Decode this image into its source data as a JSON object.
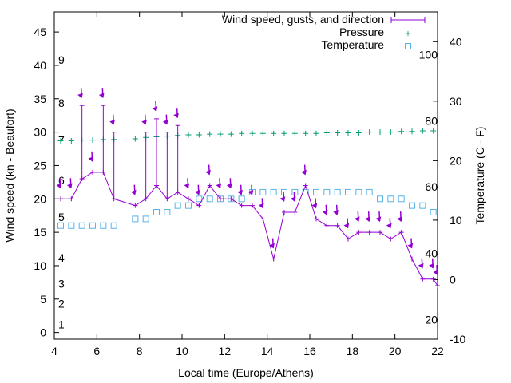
{
  "chart_data": {
    "type": "line",
    "xlabel": "Local time (Europe/Athens)",
    "ylabel": "Wind speed (kn - Beaufort)",
    "y2label": "Temperature (C - F)",
    "xlim": [
      4,
      22
    ],
    "ylim": [
      -1,
      48
    ],
    "y2lim": [
      -10,
      45
    ],
    "x_ticks": [
      4,
      6,
      8,
      10,
      12,
      14,
      16,
      18,
      20,
      22
    ],
    "y_ticks": [
      0,
      5,
      10,
      15,
      20,
      25,
      30,
      35,
      40,
      45
    ],
    "y2_ticks": [
      -10,
      0,
      10,
      20,
      30,
      40
    ],
    "beaufort_labels": [
      {
        "label": "1",
        "wind": 1.2
      },
      {
        "label": "2",
        "wind": 4.3
      },
      {
        "label": "3",
        "wind": 7.3
      },
      {
        "label": "4",
        "wind": 11.2
      },
      {
        "label": "5",
        "wind": 17.3
      },
      {
        "label": "6",
        "wind": 22.8
      },
      {
        "label": "7",
        "wind": 28.8
      },
      {
        "label": "8",
        "wind": 34.4
      },
      {
        "label": "9",
        "wind": 40.8
      }
    ],
    "fahrenheit_labels": [
      {
        "label": "20",
        "temp": -6.7
      },
      {
        "label": "40",
        "temp": 4.4
      },
      {
        "label": "60",
        "temp": 15.6
      },
      {
        "label": "80",
        "temp": 26.7
      },
      {
        "label": "100",
        "temp": 37.8
      }
    ],
    "legend_position": "top-right",
    "grid": false,
    "colors": {
      "wind": "#9400d3",
      "pressure": "#009e73",
      "temperature": "#56b4e9"
    },
    "series": [
      {
        "name": "Wind speed, gusts, and direction",
        "x": [
          4.3,
          4.8,
          5.3,
          5.8,
          6.3,
          6.8,
          7.8,
          8.3,
          8.8,
          9.3,
          9.8,
          10.3,
          10.8,
          11.3,
          11.8,
          12.3,
          12.8,
          13.3,
          13.8,
          14.3,
          14.8,
          15.3,
          15.8,
          16.3,
          16.8,
          17.3,
          17.8,
          18.3,
          18.8,
          19.3,
          19.8,
          20.3,
          20.8,
          21.3,
          21.8,
          22.0
        ],
        "values": [
          20,
          20,
          23,
          24,
          24,
          20,
          19,
          20,
          22,
          20,
          21,
          20,
          19,
          22,
          20,
          20,
          19,
          19,
          17,
          11,
          18,
          18,
          22,
          17,
          16,
          16,
          14,
          15,
          15,
          15,
          14,
          15,
          11,
          8,
          8,
          7
        ],
        "gusts": [
          null,
          null,
          34,
          null,
          34,
          30,
          null,
          30,
          32,
          30,
          31,
          null,
          null,
          null,
          null,
          null,
          null,
          null,
          null,
          null,
          null,
          null,
          null,
          null,
          null,
          null,
          null,
          null,
          null,
          null,
          null,
          null,
          null,
          null,
          null,
          null
        ],
        "direction_deg": [
          200,
          200,
          200,
          200,
          200,
          200,
          200,
          200,
          200,
          200,
          200,
          200,
          200,
          200,
          200,
          200,
          200,
          200,
          200,
          200,
          200,
          200,
          200,
          200,
          200,
          200,
          200,
          200,
          200,
          200,
          200,
          200,
          200,
          200,
          200,
          200
        ]
      },
      {
        "name": "Pressure",
        "x": [
          4.3,
          4.8,
          5.3,
          5.8,
          6.3,
          6.8,
          7.8,
          8.3,
          8.8,
          9.3,
          9.8,
          10.3,
          10.8,
          11.3,
          11.8,
          12.3,
          12.8,
          13.3,
          13.8,
          14.3,
          14.8,
          15.3,
          15.8,
          16.3,
          16.8,
          17.3,
          17.8,
          18.3,
          18.8,
          19.3,
          19.8,
          20.3,
          20.8,
          21.3,
          21.8
        ],
        "values": [
          28.7,
          28.7,
          28.8,
          28.8,
          28.9,
          28.9,
          29.0,
          29.2,
          29.3,
          29.4,
          29.5,
          29.6,
          29.6,
          29.7,
          29.7,
          29.7,
          29.8,
          29.8,
          29.8,
          29.8,
          29.8,
          29.8,
          29.8,
          29.8,
          29.9,
          29.9,
          29.9,
          29.9,
          30.0,
          30.0,
          30.0,
          30.1,
          30.1,
          30.2,
          30.2
        ]
      },
      {
        "name": "Temperature",
        "x": [
          4.3,
          4.8,
          5.3,
          5.8,
          6.3,
          6.8,
          7.8,
          8.3,
          8.8,
          9.3,
          9.8,
          10.3,
          10.8,
          11.3,
          11.8,
          12.3,
          12.8,
          13.3,
          13.8,
          14.3,
          14.8,
          15.3,
          15.8,
          16.3,
          16.8,
          17.3,
          17.8,
          18.3,
          18.8,
          19.3,
          19.8,
          20.3,
          20.8,
          21.3,
          21.8
        ],
        "values": [
          16,
          16,
          16,
          16,
          16,
          16,
          17,
          17,
          18,
          18,
          19,
          19,
          20,
          20,
          20,
          20,
          20,
          21,
          21,
          21,
          21,
          21,
          21,
          21,
          21,
          21,
          21,
          21,
          21,
          20,
          20,
          20,
          19,
          19,
          18
        ]
      }
    ]
  }
}
